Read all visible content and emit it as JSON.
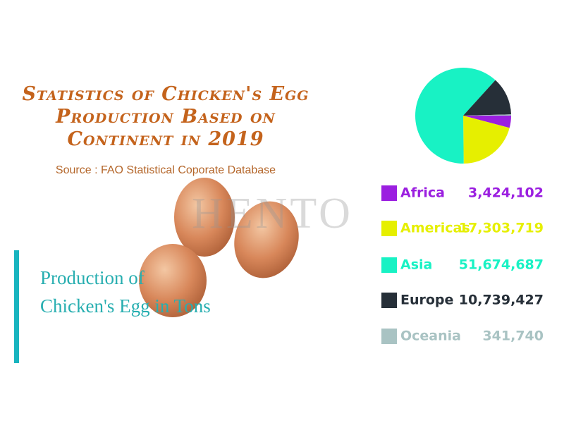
{
  "chart_data": {
    "type": "pie",
    "title": "Statistics of Chicken's Egg Production Based on Continent in 2019",
    "subtitle": "Source : FAO Statistical Coporate Database",
    "annotation": "Production of Chicken's Egg in Tons",
    "watermark": "HENTO",
    "categories": [
      "Africa",
      "Americas",
      "Asia",
      "Europe",
      "Oceania"
    ],
    "values": [
      3424102,
      17303719,
      51674687,
      10739427,
      341740
    ],
    "value_labels": [
      "3,424,102",
      "17,303,719",
      "51,674,687",
      "10,739,427",
      "341,740"
    ],
    "colors": [
      "#9b1fe0",
      "#e6ef00",
      "#18f2c4",
      "#262f38",
      "#a9c3c3"
    ]
  }
}
